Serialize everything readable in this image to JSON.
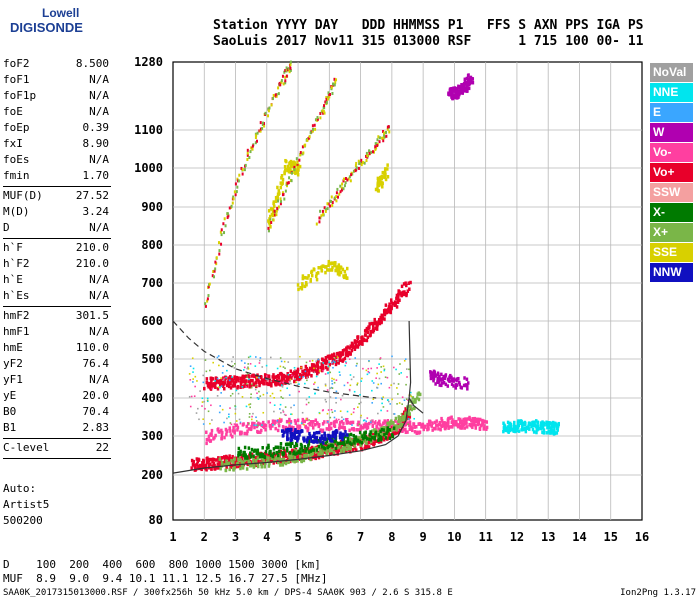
{
  "logo": {
    "line1": "Lowell",
    "line2": "DIGISONDE"
  },
  "header": {
    "row1": "Station YYYY DAY   DDD HHMMSS P1   FFS S AXN PPS IGA PS",
    "row2": "SaoLuis 2017 Nov11 315 013000 RSF      1 715 100 00- 11"
  },
  "params": [
    {
      "k": "foF2",
      "v": "8.500"
    },
    {
      "k": "foF1",
      "v": "N/A"
    },
    {
      "k": "foF1p",
      "v": "N/A"
    },
    {
      "k": "foE",
      "v": "N/A"
    },
    {
      "k": "foEp",
      "v": "0.39"
    },
    {
      "k": "fxI",
      "v": "8.90"
    },
    {
      "k": "foEs",
      "v": "N/A"
    },
    {
      "k": "fmin",
      "v": "1.70"
    },
    {
      "k": "MUF(D)",
      "v": "27.52"
    },
    {
      "k": "M(D)",
      "v": "3.24"
    },
    {
      "k": "D",
      "v": "N/A"
    },
    {
      "k": "h`F",
      "v": "210.0"
    },
    {
      "k": "h`F2",
      "v": "210.0"
    },
    {
      "k": "h`E",
      "v": "N/A"
    },
    {
      "k": "h`Es",
      "v": "N/A"
    },
    {
      "k": "hmF2",
      "v": "301.5"
    },
    {
      "k": "hmF1",
      "v": "N/A"
    },
    {
      "k": "hmE",
      "v": "110.0"
    },
    {
      "k": "yF2",
      "v": "76.4"
    },
    {
      "k": "yF1",
      "v": "N/A"
    },
    {
      "k": "yE",
      "v": "20.0"
    },
    {
      "k": "B0",
      "v": "70.4"
    },
    {
      "k": "B1",
      "v": "2.83"
    },
    {
      "k": "C-level",
      "v": "22"
    }
  ],
  "auto": {
    "line1": "Auto:",
    "line2": "Artist5",
    "line3": "500200"
  },
  "legend": [
    {
      "label": "NoVal",
      "color": "#a0a0a0"
    },
    {
      "label": "NNE",
      "color": "#00e5ee"
    },
    {
      "label": "E",
      "color": "#3aa6ff"
    },
    {
      "label": "W",
      "color": "#b000b0"
    },
    {
      "label": "Vo-",
      "color": "#ff3fa0"
    },
    {
      "label": "Vo+",
      "color": "#e8002a"
    },
    {
      "label": "SSW",
      "color": "#f4a0a0"
    },
    {
      "label": "X-",
      "color": "#007a00"
    },
    {
      "label": "X+",
      "color": "#7ab648"
    },
    {
      "label": "SSE",
      "color": "#d8d000"
    },
    {
      "label": "NNW",
      "color": "#1010c0"
    }
  ],
  "bottom": {
    "row1": "D    100  200  400  600  800 1000 1500 3000 [km]",
    "row2": "MUF  8.9  9.0  9.4 10.1 11.1 12.5 16.7 27.5 [MHz]"
  },
  "footer": "SAA0K_2017315013000.RSF / 300fx256h 50 kHz 5.0 km / DPS-4 SAA0K 903 / 2.6 S 315.8 E",
  "version": "Ion2Png 1.3.17",
  "chart_data": {
    "type": "scatter",
    "x_ticks": [
      "1",
      "2",
      "3",
      "4",
      "5",
      "6",
      "7",
      "8",
      "9",
      "10",
      "11",
      "12",
      "13",
      "14",
      "15",
      "16"
    ],
    "y_ticks": [
      "80",
      "200",
      "300",
      "400",
      "500",
      "600",
      "700",
      "800",
      "900",
      "1000",
      "1100",
      "1280"
    ],
    "x_range": [
      1,
      16
    ],
    "y_range": [
      80,
      1280
    ],
    "grid": true,
    "legend_placement": "right",
    "series": [
      {
        "name": "Vo+",
        "points": [
          [
            1.6,
            230
          ],
          [
            2.0,
            232
          ],
          [
            2.5,
            236
          ],
          [
            3.0,
            240
          ],
          [
            3.5,
            243
          ],
          [
            4.0,
            247
          ],
          [
            4.5,
            252
          ],
          [
            5.0,
            257
          ],
          [
            5.5,
            262
          ],
          [
            6.0,
            270
          ],
          [
            6.5,
            278
          ],
          [
            7.0,
            285
          ],
          [
            7.5,
            300
          ],
          [
            8.0,
            318
          ],
          [
            8.3,
            340
          ],
          [
            8.5,
            370
          ],
          [
            8.5,
            700
          ],
          [
            8.0,
            650
          ],
          [
            7.5,
            600
          ],
          [
            7.0,
            560
          ],
          [
            6.5,
            520
          ],
          [
            6.0,
            500
          ],
          [
            5.5,
            480
          ],
          [
            5.0,
            465
          ],
          [
            4.5,
            455
          ],
          [
            4.0,
            450
          ],
          [
            3.5,
            448
          ],
          [
            3.0,
            445
          ],
          [
            2.5,
            442
          ],
          [
            2.0,
            440
          ]
        ]
      },
      {
        "name": "Vo-",
        "points": [
          [
            2.0,
            300
          ],
          [
            3.0,
            320
          ],
          [
            4.0,
            330
          ],
          [
            5.0,
            335
          ],
          [
            6.0,
            330
          ],
          [
            7.0,
            335
          ],
          [
            8.0,
            330
          ],
          [
            8.7,
            325
          ],
          [
            9.5,
            335
          ],
          [
            10.0,
            340
          ],
          [
            10.5,
            340
          ],
          [
            11.0,
            335
          ]
        ]
      },
      {
        "name": "NNE",
        "points": [
          [
            11.5,
            325
          ],
          [
            12.0,
            330
          ],
          [
            12.5,
            330
          ],
          [
            13.0,
            325
          ],
          [
            13.3,
            325
          ]
        ]
      },
      {
        "name": "W",
        "points": [
          [
            9.8,
            1210
          ],
          [
            10.0,
            1200
          ],
          [
            10.3,
            1220
          ],
          [
            10.5,
            1240
          ],
          [
            9.2,
            460
          ],
          [
            9.6,
            450
          ],
          [
            10.4,
            440
          ]
        ]
      },
      {
        "name": "SSE",
        "points": [
          [
            5.0,
            700
          ],
          [
            6.0,
            750
          ],
          [
            6.5,
            730
          ],
          [
            7.5,
            950
          ],
          [
            7.8,
            1000
          ],
          [
            4.0,
            860
          ],
          [
            4.6,
            1010
          ],
          [
            5.0,
            1000
          ]
        ]
      },
      {
        "name": "X+",
        "points": [
          [
            2.5,
            230
          ],
          [
            3.5,
            235
          ],
          [
            4.5,
            245
          ],
          [
            5.5,
            260
          ],
          [
            6.5,
            280
          ],
          [
            7.5,
            310
          ],
          [
            8.2,
            340
          ],
          [
            8.8,
            410
          ],
          [
            8.9,
            600
          ]
        ]
      },
      {
        "name": "X-",
        "points": [
          [
            3.0,
            260
          ],
          [
            4.0,
            265
          ],
          [
            5.0,
            275
          ],
          [
            6.0,
            285
          ],
          [
            7.0,
            300
          ],
          [
            8.0,
            315
          ]
        ]
      },
      {
        "name": "NNW",
        "points": [
          [
            4.5,
            310
          ],
          [
            5.0,
            305
          ],
          [
            5.7,
            300
          ],
          [
            6.5,
            310
          ]
        ]
      }
    ],
    "second_trace": [
      [
        2.0,
        640
      ],
      [
        2.6,
        855
      ],
      [
        3.2,
        1000
      ],
      [
        3.8,
        1115
      ],
      [
        4.4,
        1225
      ],
      [
        4.8,
        1280
      ]
    ],
    "third_trace": [
      [
        4.0,
        850
      ],
      [
        4.6,
        955
      ],
      [
        5.2,
        1070
      ],
      [
        5.8,
        1160
      ],
      [
        6.2,
        1240
      ]
    ],
    "fourth_trace": [
      [
        5.6,
        870
      ],
      [
        6.2,
        935
      ],
      [
        6.8,
        1000
      ],
      [
        7.4,
        1060
      ],
      [
        7.9,
        1110
      ]
    ]
  }
}
